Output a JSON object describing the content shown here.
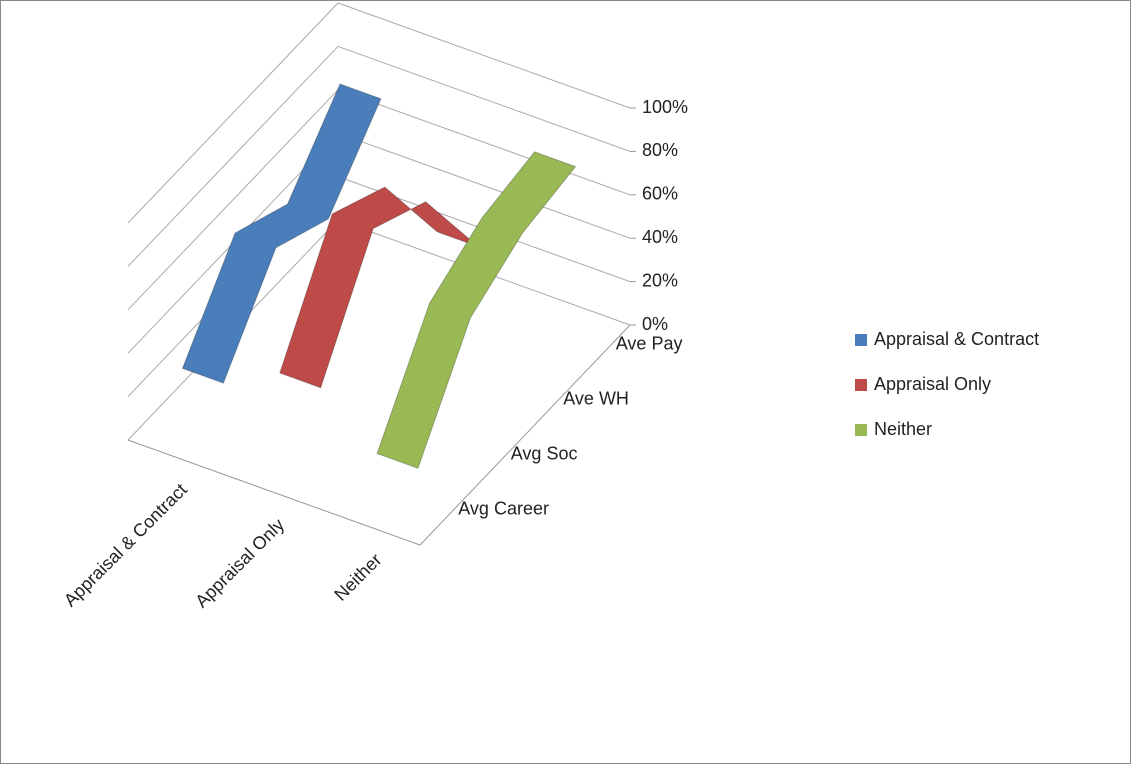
{
  "chart_data": {
    "type": "line3d",
    "categories": [
      "Avg Career",
      "Avg Soc",
      "Ave WH",
      "Ave Pay"
    ],
    "series": [
      {
        "name": "Appraisal & Contract",
        "color": "#4a7ebb",
        "values": [
          25,
          62,
          50,
          80
        ]
      },
      {
        "name": "Appraisal Only",
        "color": "#be4b48",
        "values": [
          39,
          87,
          74,
          28
        ]
      },
      {
        "name": "Neither",
        "color": "#98b954",
        "values": [
          18,
          62,
          76,
          81
        ]
      }
    ],
    "ylim": [
      0,
      100
    ],
    "yticks": [
      {
        "value": 0,
        "label": "0%"
      },
      {
        "value": 20,
        "label": "20%"
      },
      {
        "value": 40,
        "label": "40%"
      },
      {
        "value": 60,
        "label": "60%"
      },
      {
        "value": 80,
        "label": "80%"
      },
      {
        "value": 100,
        "label": "100%"
      }
    ],
    "grid": true
  }
}
